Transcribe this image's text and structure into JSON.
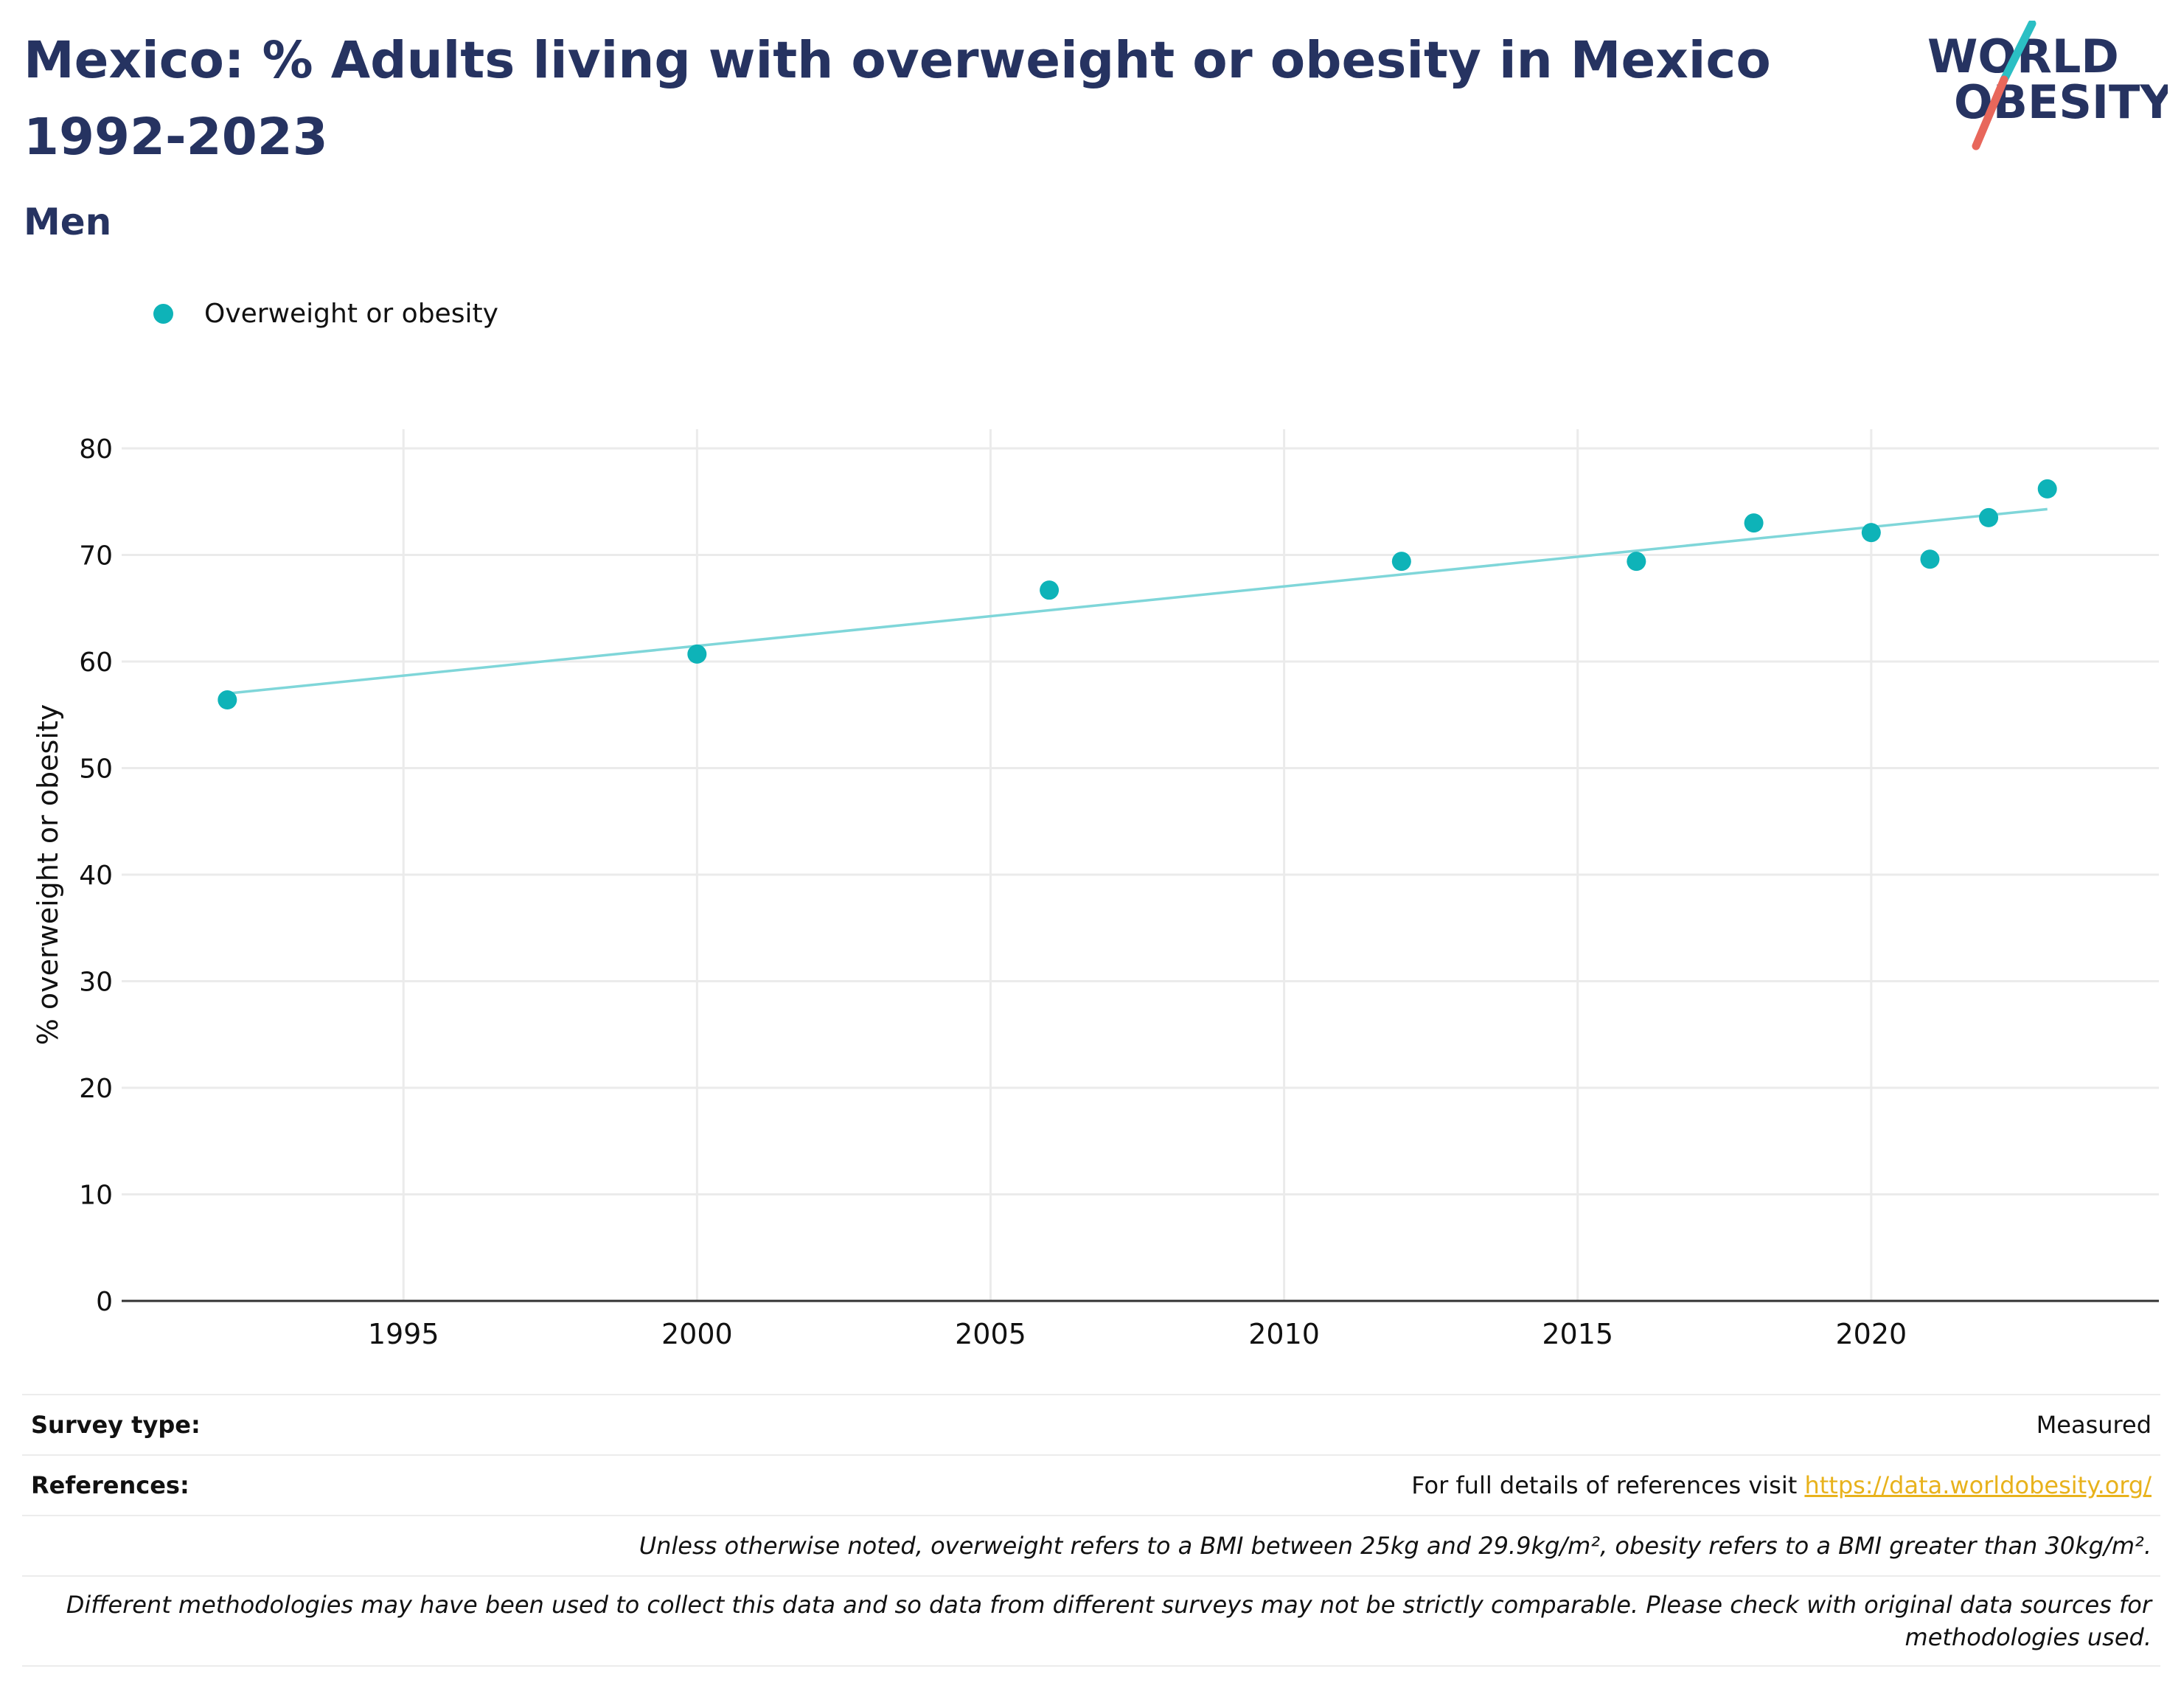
{
  "header": {
    "title": "Mexico: % Adults living with overweight or obesity in Mexico 1992-2023",
    "subtitle": "Men"
  },
  "logo": {
    "line1": "WORLD",
    "line2": "OBESITY",
    "colors": {
      "text": "#263361",
      "slash_top": "#2bbfc4",
      "slash_bottom": "#e8675b"
    }
  },
  "colors": {
    "series": "#0eb3b8",
    "trend": "#7fd6d9",
    "title": "#263361",
    "link": "#e8b21c",
    "grid": "#ebebeb"
  },
  "chart_data": {
    "type": "scatter",
    "title": "Mexico: % Adults living with overweight or obesity in Mexico 1992-2023",
    "subtitle": "Men",
    "xlabel": "",
    "ylabel": "% overweight or obesity",
    "xlim": [
      1990.2,
      2024.9
    ],
    "ylim": [
      0,
      80
    ],
    "xticks": [
      1995,
      2000,
      2005,
      2010,
      2015,
      2020
    ],
    "yticks": [
      0,
      10,
      20,
      30,
      40,
      50,
      60,
      70,
      80
    ],
    "grid": true,
    "legend_position": "top-left",
    "series": [
      {
        "name": "Overweight or obesity",
        "color": "#0eb3b8",
        "points": [
          {
            "x": 1992,
            "y": 56.4
          },
          {
            "x": 2000,
            "y": 60.7
          },
          {
            "x": 2006,
            "y": 66.7
          },
          {
            "x": 2012,
            "y": 69.4
          },
          {
            "x": 2016,
            "y": 69.4
          },
          {
            "x": 2018,
            "y": 73.0
          },
          {
            "x": 2020,
            "y": 72.1
          },
          {
            "x": 2021,
            "y": 69.6
          },
          {
            "x": 2022,
            "y": 73.5
          },
          {
            "x": 2023,
            "y": 76.2
          }
        ]
      }
    ],
    "trendline": {
      "x": [
        1992,
        2023
      ],
      "y": [
        57.0,
        74.3
      ],
      "color": "#7fd6d9"
    }
  },
  "footer": {
    "survey_type_label": "Survey type:",
    "survey_type_value": "Measured",
    "references_label": "References:",
    "references_text": "For full details of references visit ",
    "references_link": "https://data.worldobesity.org/",
    "note1": "Unless otherwise noted, overweight refers to a BMI between 25kg and 29.9kg/m², obesity refers to a BMI greater than 30kg/m².",
    "note2_line1": "Different methodologies may have been used to collect this data and so data from different surveys may not be strictly comparable. Please check with original data sources for",
    "note2_line2": "methodologies used."
  }
}
